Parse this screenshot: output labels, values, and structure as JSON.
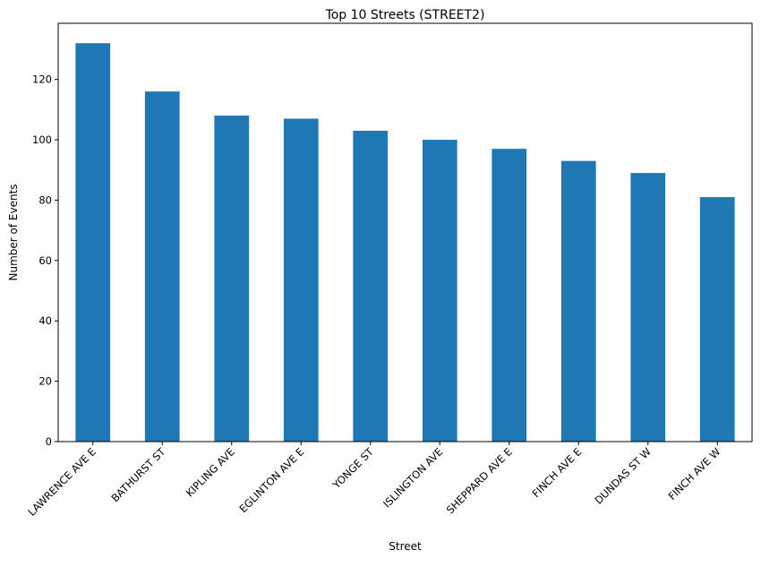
{
  "chart_data": {
    "type": "bar",
    "title": "Top 10 Streets (STREET2)",
    "xlabel": "Street",
    "ylabel": "Number of Events",
    "categories": [
      "LAWRENCE AVE E",
      "BATHURST ST",
      "KIPLING AVE",
      "EGLINTON AVE E",
      "YONGE ST",
      "ISLINGTON AVE",
      "SHEPPARD AVE E",
      "FINCH AVE E",
      "DUNDAS ST W",
      "FINCH AVE W"
    ],
    "values": [
      132,
      116,
      108,
      107,
      103,
      100,
      97,
      93,
      89,
      81
    ],
    "yticks": [
      0,
      20,
      40,
      60,
      80,
      100,
      120
    ],
    "ylim": [
      0,
      138.6
    ],
    "bar_color": "#1f77b4",
    "grid": false,
    "legend": "none"
  }
}
